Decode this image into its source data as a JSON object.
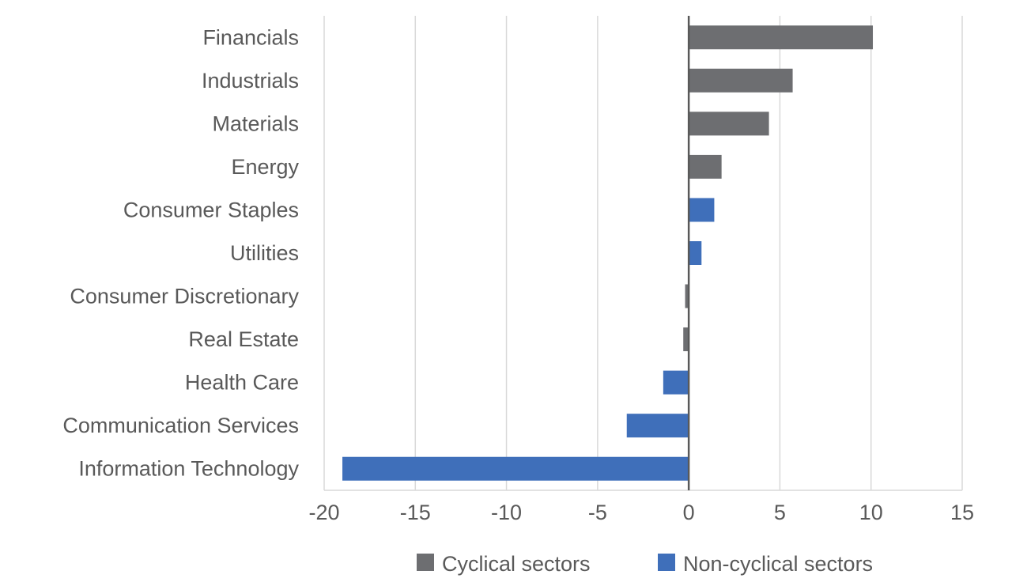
{
  "chart_data": {
    "type": "bar",
    "orientation": "horizontal",
    "title": "",
    "xlabel": "",
    "ylabel": "",
    "xlim": [
      -20,
      15
    ],
    "x_ticks": [
      -20,
      -15,
      -10,
      -5,
      0,
      5,
      10,
      15
    ],
    "x_tick_labels": [
      "-20",
      "-15",
      "-10",
      "-5",
      "0",
      "5",
      "10",
      "15"
    ],
    "grid": "vertical",
    "legend_position": "bottom",
    "categories": [
      "Financials",
      "Industrials",
      "Materials",
      "Energy",
      "Consumer Staples",
      "Utilities",
      "Consumer Discretionary",
      "Real Estate",
      "Health Care",
      "Communication Services",
      "Information Technology"
    ],
    "values": [
      10.1,
      5.7,
      4.4,
      1.8,
      1.4,
      0.7,
      -0.2,
      -0.3,
      -1.4,
      -3.4,
      -19.0
    ],
    "groups": [
      "cyclical",
      "cyclical",
      "cyclical",
      "cyclical",
      "non-cyclical",
      "non-cyclical",
      "cyclical",
      "cyclical",
      "non-cyclical",
      "non-cyclical",
      "non-cyclical"
    ],
    "series": [
      {
        "key": "cyclical",
        "name": "Cyclical sectors",
        "color": "#6d6e71"
      },
      {
        "key": "non-cyclical",
        "name": "Non-cyclical sectors",
        "color": "#3f6fba"
      }
    ],
    "colors": {
      "grid": "#d9d9d9",
      "axis": "#595959",
      "text": "#595959"
    }
  }
}
